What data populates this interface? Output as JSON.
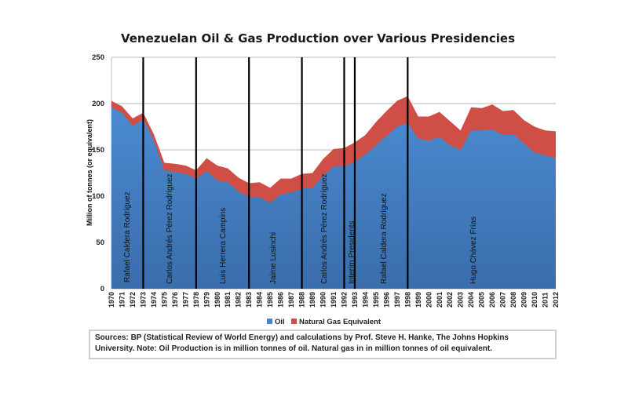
{
  "chart_data": {
    "type": "area",
    "stacked": true,
    "title": "Venezuelan Oil & Gas Production over Various Presidencies",
    "xlabel": "",
    "ylabel": "Million of tonnes (or equivalent)",
    "ylim": [
      0,
      250
    ],
    "yticks": [
      0,
      50,
      100,
      150,
      200,
      250
    ],
    "grid": true,
    "legend_position": "bottom",
    "x": [
      1970,
      1971,
      1972,
      1973,
      1974,
      1975,
      1976,
      1977,
      1978,
      1979,
      1980,
      1981,
      1982,
      1983,
      1984,
      1985,
      1986,
      1987,
      1988,
      1989,
      1990,
      1991,
      1992,
      1993,
      1994,
      1995,
      1996,
      1997,
      1998,
      1999,
      2000,
      2001,
      2002,
      2003,
      2004,
      2005,
      2006,
      2007,
      2008,
      2009,
      2010,
      2011,
      2012
    ],
    "series": [
      {
        "name": "Oil",
        "color": "#4a84c4",
        "values": [
          196,
          190,
          176,
          183,
          160,
          128,
          126,
          124,
          119,
          127,
          117,
          115,
          105,
          99,
          99,
          93,
          102,
          104,
          108,
          109,
          122,
          132,
          132,
          137,
          145,
          155,
          165,
          175,
          179,
          162,
          160,
          164,
          155,
          150,
          171,
          171,
          172,
          166,
          167,
          157,
          147,
          144,
          141
        ]
      },
      {
        "name": "Natural Gas Equivalent",
        "color": "#cf4f47",
        "values": [
          7,
          7,
          8,
          7,
          7,
          8,
          9,
          9,
          9,
          14,
          16,
          15,
          15,
          15,
          16,
          16,
          17,
          15,
          16,
          16,
          18,
          19,
          20,
          21,
          21,
          25,
          27,
          28,
          29,
          24,
          26,
          27,
          26,
          21,
          25,
          24,
          27,
          26,
          26,
          25,
          28,
          27,
          29
        ]
      }
    ],
    "presidency_lines": [
      1973,
      1978,
      1983,
      1988,
      1992,
      1993,
      1998
    ],
    "presidencies": [
      {
        "name": "Rafael Caldera Rodríguez",
        "start": 1970,
        "end": 1973
      },
      {
        "name": "Carlos Andrés Pérez Rodríguez",
        "start": 1973,
        "end": 1978
      },
      {
        "name": "Luis Herrera Campins",
        "start": 1978,
        "end": 1983
      },
      {
        "name": "Jaime Lusinchi",
        "start": 1983,
        "end": 1988
      },
      {
        "name": "Carlos Andrés Pérez Rodríguez",
        "start": 1988,
        "end": 1992
      },
      {
        "name": "Interim Presidents",
        "start": 1992,
        "end": 1993
      },
      {
        "name": "Rafael Caldera Rodríguez",
        "start": 1993,
        "end": 1998
      },
      {
        "name": "Hugo Chávez Frías",
        "start": 1998,
        "end": 2012
      }
    ]
  },
  "legend": {
    "items": [
      {
        "label": "Oil",
        "color": "#4a84c4"
      },
      {
        "label": "Natural Gas Equivalent",
        "color": "#cf4f47"
      }
    ]
  },
  "note": "Sources: BP (Statistical Review of World Energy) and calculations by Prof. Steve H. Hanke, The Johns Hopkins University. Note:  Oil Production is in million tonnes of oil.  Natural gas in in million tonnes of oil equivalent."
}
